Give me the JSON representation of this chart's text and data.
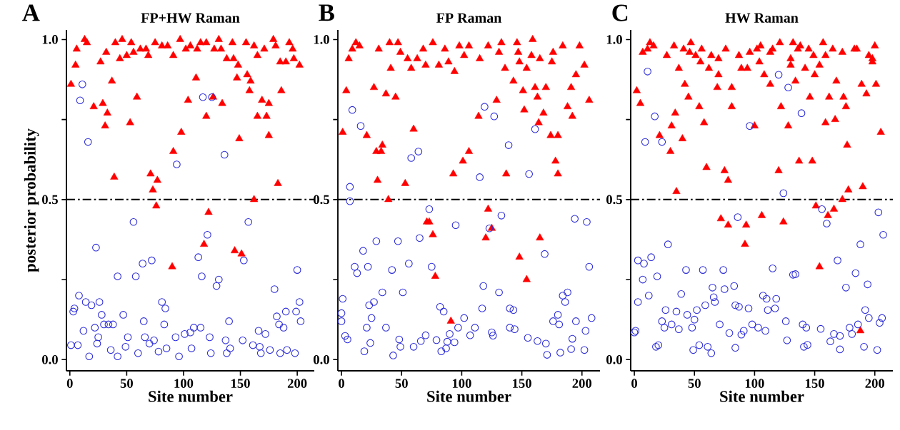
{
  "chart_data": [
    {
      "type": "scatter",
      "title": "FP+HW Raman",
      "xlabel": "Site number",
      "ylabel": "posterior probability",
      "annotations": [
        "A"
      ],
      "xlim": [
        -3,
        215
      ],
      "ylim": [
        -0.035,
        1.03
      ],
      "xticks": [
        0,
        50,
        100,
        150,
        200
      ],
      "yticks": [
        {
          "value": 0,
          "label": "0.0"
        },
        {
          "value": 0.25,
          "label": null
        },
        {
          "value": 0.5,
          "label": "0.5"
        },
        {
          "value": 0.75,
          "label": null
        },
        {
          "value": 1,
          "label": "1.0"
        }
      ],
      "ref_lines": [
        {
          "axis": "y",
          "value": 0.5,
          "color": "#000000",
          "line_style": "dashdot"
        }
      ],
      "series": [
        {
          "color": "#ff0000",
          "marker": "triangle",
          "x": [
            1,
            5,
            6,
            13,
            15,
            21,
            27,
            29,
            32,
            33,
            31,
            37,
            39,
            40,
            44,
            46,
            50,
            53,
            54,
            56,
            59,
            62,
            67,
            69,
            71,
            73,
            77,
            75,
            81,
            86,
            91,
            91,
            97,
            98,
            102,
            104,
            106,
            111,
            112,
            115,
            120,
            120,
            126,
            127,
            131,
            133,
            134,
            138,
            143,
            144,
            148,
            147,
            149,
            155,
            156,
            159,
            158,
            162,
            165,
            165,
            169,
            171,
            173,
            175,
            175,
            179,
            183,
            186,
            181,
            185,
            190,
            193,
            196,
            197,
            202,
            76,
            122,
            118,
            90,
            145,
            151,
            162
          ],
          "values": [
            0.86,
            0.92,
            0.97,
            1.0,
            0.99,
            0.79,
            0.93,
            0.8,
            0.96,
            0.77,
            0.73,
            0.87,
            0.57,
            0.99,
            0.94,
            1.0,
            0.95,
            0.74,
            0.99,
            0.96,
            0.82,
            0.97,
            0.97,
            0.95,
            0.58,
            0.53,
            0.56,
            0.99,
            0.98,
            0.98,
            0.95,
            0.65,
            1.0,
            0.71,
            0.97,
            0.81,
            0.98,
            0.88,
            0.97,
            0.99,
            0.76,
            0.99,
            0.82,
            0.97,
            1.0,
            0.97,
            0.8,
            0.94,
            0.99,
            0.94,
            0.92,
            0.88,
            0.69,
            0.99,
            0.89,
            0.87,
            0.84,
            0.98,
            0.76,
            0.95,
            0.81,
            0.97,
            0.76,
            0.8,
            0.7,
            1.0,
            0.55,
            0.84,
            0.98,
            0.93,
            0.93,
            0.99,
            0.97,
            0.94,
            0.92,
            0.48,
            0.46,
            0.36,
            0.29,
            0.34,
            0.33,
            0.5
          ]
        },
        {
          "color": "#2b2bd9",
          "marker": "circle",
          "x": [
            11,
            9,
            16,
            94,
            117,
            125,
            136,
            56,
            23,
            72,
            64,
            42,
            58,
            8,
            14,
            19,
            26,
            4,
            3,
            28,
            47,
            30,
            34,
            38,
            22,
            12,
            25,
            24,
            1,
            7,
            36,
            51,
            49,
            65,
            66,
            74,
            70,
            81,
            84,
            83,
            93,
            101,
            106,
            109,
            115,
            123,
            113,
            116,
            121,
            129,
            131,
            140,
            137,
            141,
            152,
            153,
            157,
            161,
            166,
            167,
            172,
            180,
            182,
            184,
            188,
            190,
            199,
            202,
            200,
            203,
            176,
            191,
            198,
            17,
            42,
            60,
            78,
            85,
            96,
            107,
            124,
            138,
            168,
            185
          ],
          "values": [
            0.86,
            0.81,
            0.68,
            0.61,
            0.82,
            0.82,
            0.64,
            0.43,
            0.35,
            0.31,
            0.3,
            0.26,
            0.26,
            0.2,
            0.18,
            0.17,
            0.18,
            0.16,
            0.15,
            0.14,
            0.14,
            0.11,
            0.11,
            0.11,
            0.1,
            0.09,
            0.07,
            0.05,
            0.045,
            0.045,
            0.03,
            0.07,
            0.04,
            0.12,
            0.07,
            0.06,
            0.05,
            0.18,
            0.16,
            0.11,
            0.07,
            0.08,
            0.085,
            0.1,
            0.1,
            0.07,
            0.32,
            0.26,
            0.39,
            0.23,
            0.25,
            0.12,
            0.06,
            0.035,
            0.06,
            0.31,
            0.43,
            0.045,
            0.09,
            0.04,
            0.08,
            0.22,
            0.135,
            0.11,
            0.1,
            0.15,
            0.15,
            0.18,
            0.28,
            0.12,
            0.03,
            0.03,
            0.02,
            0.01,
            0.01,
            0.02,
            0.025,
            0.035,
            0.01,
            0.035,
            0.02,
            0.02,
            0.02,
            0.02
          ]
        }
      ]
    },
    {
      "type": "scatter",
      "title": "FP Raman",
      "xlabel": "Site number",
      "annotations": [
        "B"
      ],
      "xlim": [
        -3,
        215
      ],
      "ylim": [
        -0.035,
        1.03
      ],
      "xticks": [
        0,
        50,
        100,
        150,
        200
      ],
      "yticks": [
        {
          "value": 0,
          "label": "0.0"
        },
        {
          "value": 0.25,
          "label": null
        },
        {
          "value": 0.5,
          "label": "0.5"
        },
        {
          "value": 0.75,
          "label": null
        },
        {
          "value": 1,
          "label": "1.0"
        }
      ],
      "ref_lines": [
        {
          "axis": "y",
          "value": 0.5,
          "color": "#000000",
          "line_style": "dashdot"
        }
      ],
      "series": [
        {
          "color": "#ff0000",
          "marker": "triangle",
          "x": [
            1,
            4,
            6,
            9,
            12,
            15,
            21,
            27,
            31,
            29,
            34,
            33,
            37,
            41,
            40,
            45,
            47,
            49,
            53,
            55,
            58,
            60,
            63,
            68,
            70,
            76,
            81,
            86,
            89,
            93,
            94,
            98,
            101,
            102,
            106,
            106,
            114,
            115,
            122,
            129,
            131,
            133,
            136,
            137,
            143,
            146,
            147,
            148,
            151,
            152,
            154,
            158,
            159,
            161,
            163,
            164,
            165,
            168,
            170,
            174,
            175,
            176,
            178,
            180,
            180,
            184,
            188,
            191,
            192,
            195,
            198,
            202,
            206,
            39,
            73,
            71,
            76,
            78,
            91,
            122,
            125,
            120,
            148,
            165,
            154,
            30
          ],
          "values": [
            0.71,
            0.84,
            0.94,
            0.97,
            0.99,
            0.98,
            0.7,
            0.85,
            0.97,
            0.65,
            0.67,
            0.65,
            0.83,
            0.91,
            0.99,
            0.82,
            0.99,
            0.96,
            0.55,
            0.94,
            0.91,
            0.72,
            0.94,
            0.97,
            0.92,
            0.99,
            0.92,
            0.97,
            0.93,
            0.58,
            0.9,
            0.98,
            0.62,
            0.95,
            0.65,
            0.98,
            0.76,
            0.94,
            0.98,
            0.81,
            0.96,
            0.99,
            0.91,
            0.58,
            0.87,
            0.99,
            0.96,
            0.93,
            0.84,
            0.78,
            0.91,
            0.95,
            1.0,
            0.85,
            0.82,
            0.74,
            0.94,
            0.77,
            0.85,
            0.7,
            0.93,
            0.96,
            0.62,
            0.58,
            0.7,
            0.98,
            0.79,
            0.85,
            0.76,
            0.89,
            0.98,
            0.92,
            0.81,
            0.5,
            0.43,
            0.43,
            0.39,
            0.26,
            0.12,
            0.47,
            0.41,
            0.38,
            0.32,
            0.38,
            0.25,
            0.56
          ]
        },
        {
          "color": "#2b2bd9",
          "marker": "circle",
          "x": [
            9,
            16,
            7,
            58,
            64,
            119,
            127,
            161,
            139,
            115,
            156,
            7,
            73,
            133,
            95,
            123,
            194,
            204,
            65,
            47,
            29,
            18,
            11,
            13,
            22,
            42,
            56,
            75,
            169,
            206,
            1,
            0,
            0,
            23,
            27,
            25,
            21,
            37,
            34,
            51,
            118,
            131,
            82,
            85,
            102,
            97,
            111,
            117,
            140,
            143,
            140,
            144,
            125,
            126,
            107,
            90,
            94,
            88,
            79,
            70,
            66,
            60,
            48,
            49,
            24,
            3,
            5,
            19,
            43,
            83,
            87,
            155,
            163,
            170,
            171,
            176,
            180,
            181,
            184,
            188,
            186,
            195,
            208,
            192,
            203,
            191,
            182,
            202
          ],
          "values": [
            0.78,
            0.73,
            0.54,
            0.63,
            0.65,
            0.79,
            0.76,
            0.72,
            0.67,
            0.57,
            0.58,
            0.495,
            0.47,
            0.45,
            0.42,
            0.41,
            0.44,
            0.43,
            0.38,
            0.37,
            0.37,
            0.34,
            0.29,
            0.27,
            0.29,
            0.28,
            0.3,
            0.29,
            0.33,
            0.29,
            0.19,
            0.145,
            0.12,
            0.17,
            0.18,
            0.13,
            0.1,
            0.1,
            0.21,
            0.21,
            0.23,
            0.21,
            0.165,
            0.15,
            0.13,
            0.1,
            0.1,
            0.16,
            0.16,
            0.155,
            0.1,
            0.095,
            0.085,
            0.075,
            0.076,
            0.08,
            0.054,
            0.056,
            0.061,
            0.076,
            0.058,
            0.04,
            0.063,
            0.04,
            0.052,
            0.074,
            0.063,
            0.026,
            0.013,
            0.026,
            0.035,
            0.068,
            0.058,
            0.05,
            0.015,
            0.12,
            0.14,
            0.11,
            0.2,
            0.21,
            0.18,
            0.12,
            0.13,
            0.065,
            0.09,
            0.033,
            0.022,
            0.03
          ]
        }
      ]
    },
    {
      "type": "scatter",
      "title": "HW Raman",
      "xlabel": "Site number",
      "annotations": [
        "C"
      ],
      "xlim": [
        -3,
        215
      ],
      "ylim": [
        -0.035,
        1.03
      ],
      "xticks": [
        0,
        50,
        100,
        150,
        200
      ],
      "yticks": [
        {
          "value": 0,
          "label": "0.0"
        },
        {
          "value": 0.25,
          "label": null
        },
        {
          "value": 0.5,
          "label": "0.5"
        },
        {
          "value": 0.75,
          "label": null
        },
        {
          "value": 1,
          "label": "1.0"
        }
      ],
      "ref_lines": [
        {
          "axis": "y",
          "value": 0.5,
          "color": "#000000",
          "line_style": "dashdot"
        }
      ],
      "series": [
        {
          "color": "#ff0000",
          "marker": "triangle",
          "x": [
            2,
            5,
            7,
            11,
            13,
            16,
            27,
            33,
            34,
            31,
            21,
            30,
            37,
            40,
            41,
            42,
            45,
            47,
            46,
            51,
            54,
            55,
            56,
            58,
            62,
            60,
            64,
            69,
            70,
            70,
            75,
            76,
            78,
            81,
            81,
            87,
            89,
            94,
            96,
            100,
            102,
            105,
            104,
            108,
            113,
            113,
            115,
            120,
            121,
            122,
            128,
            130,
            130,
            132,
            134,
            137,
            138,
            136,
            142,
            145,
            146,
            148,
            149,
            150,
            154,
            157,
            159,
            159,
            162,
            165,
            167,
            168,
            173,
            174,
            176,
            177,
            183,
            185,
            189,
            193,
            195,
            198,
            198,
            200,
            201,
            205,
            35,
            72,
            78,
            93,
            92,
            106,
            124,
            151,
            166,
            161,
            173,
            178,
            190,
            154,
            188
          ],
          "values": [
            0.84,
            0.8,
            0.96,
            0.97,
            0.99,
            0.98,
            0.95,
            0.98,
            0.77,
            0.73,
            0.7,
            0.65,
            0.91,
            0.69,
            0.97,
            0.86,
            0.82,
            0.99,
            0.96,
            0.95,
            0.79,
            0.93,
            0.97,
            0.74,
            0.91,
            0.6,
            0.95,
            0.85,
            0.94,
            0.89,
            0.59,
            0.97,
            0.56,
            0.85,
            0.79,
            0.95,
            0.91,
            0.91,
            0.96,
            0.73,
            0.97,
            0.98,
            0.93,
            0.89,
            0.96,
            0.86,
            0.97,
            0.59,
            0.99,
            0.79,
            0.73,
            0.94,
            0.92,
            0.99,
            0.87,
            0.62,
            0.98,
            0.97,
            0.91,
            0.97,
            0.82,
            0.62,
            0.95,
            0.89,
            0.92,
            0.99,
            0.95,
            0.74,
            0.82,
            0.97,
            0.75,
            0.87,
            0.96,
            0.82,
            0.79,
            0.67,
            0.97,
            0.97,
            0.86,
            0.83,
            0.95,
            0.94,
            0.93,
            0.98,
            0.86,
            0.71,
            0.525,
            0.44,
            0.42,
            0.42,
            0.36,
            0.45,
            0.43,
            0.48,
            0.47,
            0.45,
            0.5,
            0.53,
            0.54,
            0.29,
            0.09
          ]
        },
        {
          "color": "#2b2bd9",
          "marker": "circle",
          "x": [
            11,
            17,
            9,
            23,
            96,
            120,
            128,
            139,
            124,
            156,
            160,
            86,
            203,
            207,
            28,
            188,
            3,
            8,
            14,
            7,
            19,
            43,
            57,
            74,
            115,
            132,
            134,
            169,
            184,
            176,
            194,
            3,
            12,
            39,
            65,
            75,
            83,
            66,
            67,
            59,
            84,
            87,
            95,
            107,
            110,
            118,
            111,
            117,
            26,
            35,
            44,
            52,
            50,
            23,
            31,
            25,
            37,
            48,
            71,
            79,
            89,
            91,
            98,
            103,
            109,
            126,
            140,
            143,
            155,
            166,
            179,
            186,
            181,
            192,
            195,
            206,
            204,
            1,
            0,
            18,
            20,
            49,
            54,
            61,
            64,
            84,
            127,
            141,
            144,
            163,
            171,
            171,
            191,
            202
          ],
          "values": [
            0.9,
            0.76,
            0.68,
            0.68,
            0.73,
            0.89,
            0.85,
            0.77,
            0.52,
            0.47,
            0.425,
            0.445,
            0.46,
            0.39,
            0.36,
            0.36,
            0.31,
            0.3,
            0.32,
            0.25,
            0.26,
            0.28,
            0.28,
            0.28,
            0.285,
            0.265,
            0.267,
            0.31,
            0.27,
            0.225,
            0.235,
            0.18,
            0.2,
            0.205,
            0.225,
            0.22,
            0.23,
            0.195,
            0.18,
            0.17,
            0.17,
            0.165,
            0.16,
            0.2,
            0.19,
            0.19,
            0.155,
            0.16,
            0.155,
            0.15,
            0.14,
            0.155,
            0.125,
            0.12,
            0.11,
            0.1,
            0.095,
            0.1,
            0.11,
            0.083,
            0.078,
            0.09,
            0.11,
            0.1,
            0.09,
            0.12,
            0.11,
            0.1,
            0.096,
            0.08,
            0.1,
            0.11,
            0.08,
            0.155,
            0.13,
            0.13,
            0.115,
            0.09,
            0.085,
            0.04,
            0.045,
            0.03,
            0.045,
            0.04,
            0.02,
            0.037,
            0.06,
            0.04,
            0.046,
            0.057,
            0.074,
            0.032,
            0.04,
            0.03
          ]
        }
      ]
    }
  ]
}
